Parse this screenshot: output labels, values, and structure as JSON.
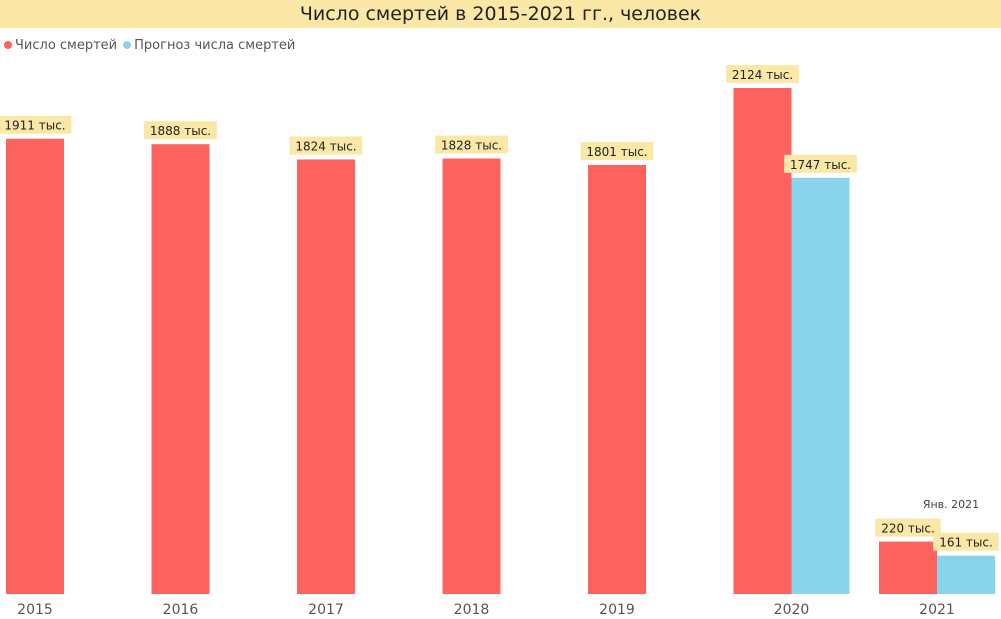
{
  "title": "Число смертей в 2015-2021 гг., человек",
  "legend": [
    {
      "label": "Число смертей",
      "color": "#fd625e"
    },
    {
      "label": "Прогноз числа смертей",
      "color": "#8ad4eb"
    }
  ],
  "chart_data": {
    "type": "bar",
    "title": "Число смертей в 2015-2021 гг., человек",
    "xlabel": "",
    "ylabel": "",
    "ylim": [
      0,
      2124
    ],
    "grid": false,
    "legend_position": "top-left",
    "categories": [
      "2015",
      "2016",
      "2017",
      "2018",
      "2019",
      "2020",
      "2021"
    ],
    "series": [
      {
        "name": "Число смертей",
        "color": "#fd625e",
        "values": [
          1911,
          1888,
          1824,
          1828,
          1801,
          2124,
          220
        ],
        "labels": [
          "1911 тыс.",
          "1888 тыс.",
          "1824 тыс.",
          "1828 тыс.",
          "1801 тыс.",
          "2124 тыс.",
          "220 тыс."
        ]
      },
      {
        "name": "Прогноз числа смертей",
        "color": "#8ad4eb",
        "values": [
          null,
          null,
          null,
          null,
          null,
          1747,
          161
        ],
        "labels": [
          null,
          null,
          null,
          null,
          null,
          "1747 тыс.",
          "161 тыс."
        ]
      }
    ],
    "annotations": [
      {
        "category": "2021",
        "text": "Янв. 2021"
      }
    ],
    "label_background": "#fbe8a6"
  }
}
